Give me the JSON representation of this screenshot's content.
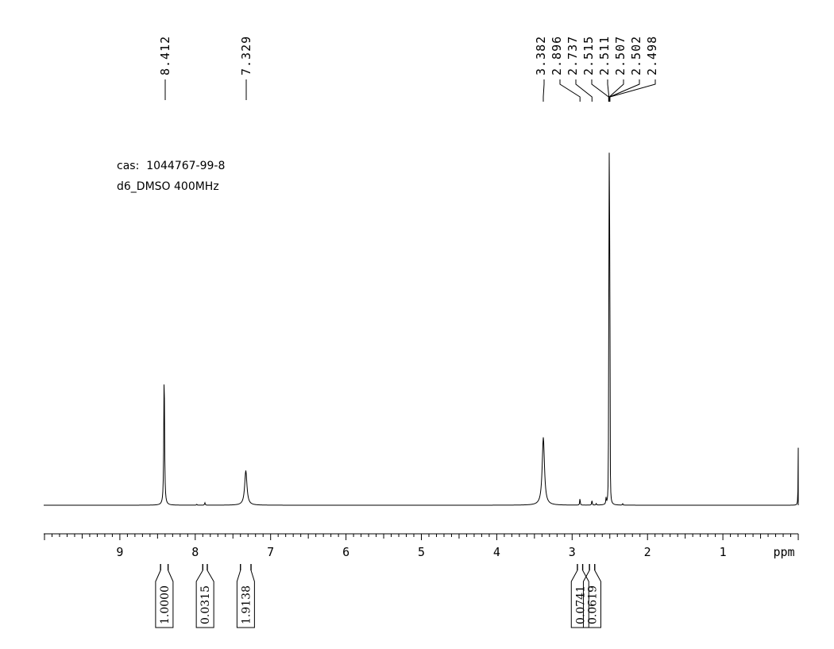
{
  "info": {
    "cas_line": "cas:  1044767-99-8",
    "solvent_line": "d6_DMSO 400MHz"
  },
  "chart_data": {
    "type": "line",
    "title": "",
    "xlabel": "ppm",
    "ylabel": "",
    "xlim": [
      10.0,
      0.0
    ],
    "x_reversed": true,
    "ylim": [
      0,
      1.0
    ],
    "grid": false,
    "x_ticks": [
      9,
      8,
      7,
      6,
      5,
      4,
      3,
      2,
      1
    ],
    "x_tick_labels": [
      "9",
      "8",
      "7",
      "6",
      "5",
      "4",
      "3",
      "2",
      "1"
    ],
    "peak_labels": [
      "8.412",
      "7.329",
      "3.382",
      "2.896",
      "2.737",
      "2.515",
      "2.511",
      "2.507",
      "2.502",
      "2.498"
    ],
    "peaks": [
      {
        "ppm": 8.412,
        "height": 0.45,
        "width": 0.006
      },
      {
        "ppm": 7.98,
        "height": 0.003,
        "width": 0.005
      },
      {
        "ppm": 7.872,
        "height": 0.008,
        "width": 0.005
      },
      {
        "ppm": 7.329,
        "height": 0.115,
        "width": 0.018
      },
      {
        "ppm": 3.382,
        "height": 0.225,
        "width": 0.018
      },
      {
        "ppm": 2.896,
        "height": 0.024,
        "width": 0.004
      },
      {
        "ppm": 2.737,
        "height": 0.018,
        "width": 0.004
      },
      {
        "ppm": 2.68,
        "height": 0.006,
        "width": 0.004
      },
      {
        "ppm": 2.55,
        "height": 0.02,
        "width": 0.004
      },
      {
        "ppm": 2.515,
        "height": 0.45,
        "width": 0.002
      },
      {
        "ppm": 2.511,
        "height": 0.72,
        "width": 0.002
      },
      {
        "ppm": 2.507,
        "height": 1.0,
        "width": 0.002
      },
      {
        "ppm": 2.502,
        "height": 0.72,
        "width": 0.002
      },
      {
        "ppm": 2.498,
        "height": 0.45,
        "width": 0.002
      },
      {
        "ppm": 2.33,
        "height": 0.005,
        "width": 0.004
      },
      {
        "ppm": 0.0,
        "height": 0.19,
        "width": 0.003
      }
    ],
    "integrals": [
      {
        "from": 8.46,
        "to": 8.36,
        "value": "1.0000"
      },
      {
        "from": 7.9,
        "to": 7.84,
        "value": "0.0315"
      },
      {
        "from": 7.4,
        "to": 7.26,
        "value": "1.9138"
      },
      {
        "from": 2.93,
        "to": 2.86,
        "value": "0.0741"
      },
      {
        "from": 2.77,
        "to": 2.7,
        "value": "0.0619"
      }
    ]
  }
}
